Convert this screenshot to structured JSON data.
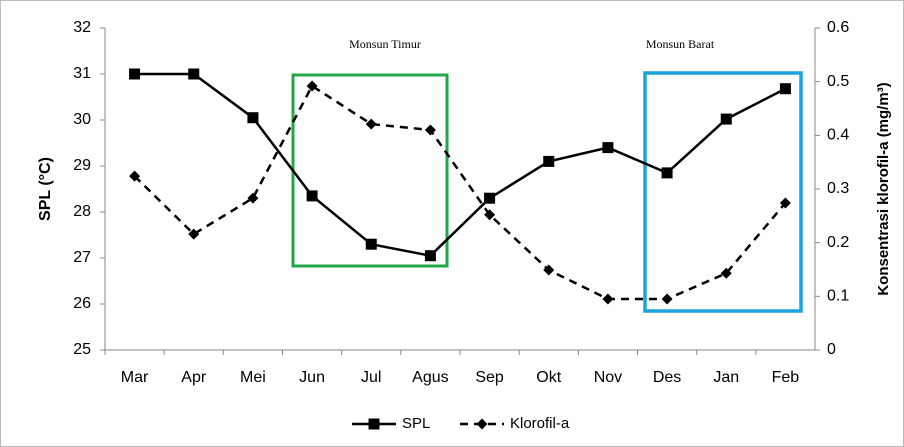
{
  "chart_data": {
    "type": "line",
    "categories": [
      "Mar",
      "Apr",
      "Mei",
      "Jun",
      "Jul",
      "Agus",
      "Sep",
      "Okt",
      "Nov",
      "Des",
      "Jan",
      "Feb"
    ],
    "series": [
      {
        "name": "SPL",
        "color": "#000000",
        "values": [
          31,
          31,
          30.05,
          28.35,
          27.3,
          27.05,
          28.3,
          29.1,
          29.4,
          28.85,
          30.02,
          30.68
        ]
      },
      {
        "name": "Klorofil-a",
        "color": "#000000",
        "axis": "y2",
        "values": [
          0.324,
          0.216,
          0.283,
          0.492,
          0.421,
          0.41,
          0.252,
          0.149,
          0.095,
          0.095,
          0.143,
          0.274
        ]
      }
    ],
    "ylabel": "SPL (°C)",
    "y2label": "Konsentrasi klorofil-a (mg/m³)",
    "ylim": [
      25,
      32
    ],
    "yticks": [
      25,
      26,
      27,
      28,
      29,
      30,
      31,
      32
    ],
    "y2lim": [
      0,
      0.6
    ],
    "y2ticks": [
      0,
      0.1,
      0.2,
      0.3,
      0.4,
      0.5,
      0.6
    ],
    "annotations": [
      "Monsun Timur",
      "Monsun Barat"
    ],
    "legend": "bottom"
  }
}
